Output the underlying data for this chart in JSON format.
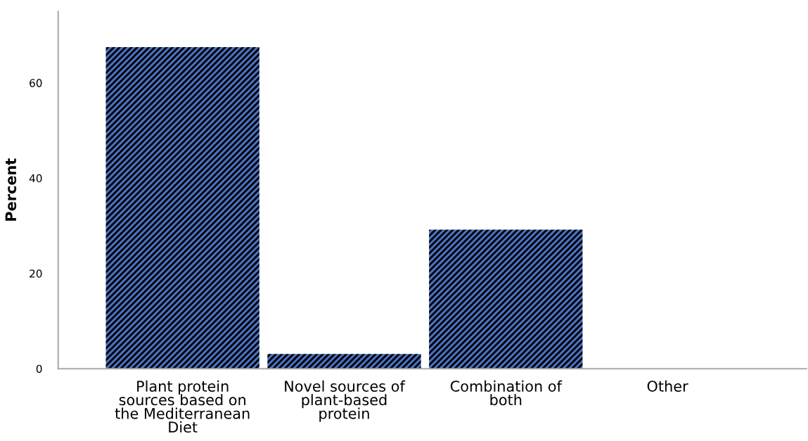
{
  "chart_data": {
    "type": "bar",
    "ylabel": "Percent",
    "categories": [
      "Plant protein\nsources based on\nthe Mediterranean\nDiet",
      "Novel sources of\nplant-based\nprotein",
      "Combination of\nboth",
      "Other"
    ],
    "values": [
      67.5,
      3.1,
      29.2,
      0
    ],
    "color": "#4a72c4",
    "ylim": [
      0,
      75
    ],
    "yticks": [
      0,
      20,
      40,
      60
    ],
    "grid": false
  }
}
